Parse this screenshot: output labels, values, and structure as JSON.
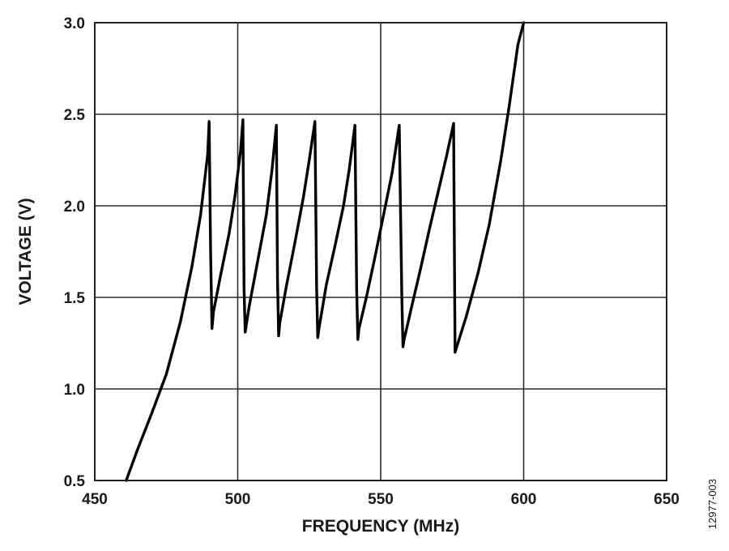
{
  "chart_data": {
    "type": "line",
    "title": "",
    "xlabel": "FREQUENCY (MHz)",
    "ylabel": "VOLTAGE (V)",
    "xlim": [
      450,
      650
    ],
    "ylim": [
      0.5,
      3.0
    ],
    "x_ticks": [
      450,
      500,
      550,
      600,
      650
    ],
    "x_tick_labels": [
      "450",
      "500",
      "550",
      "600",
      "650"
    ],
    "y_ticks": [
      0.5,
      1.0,
      1.5,
      2.0,
      2.5,
      3.0
    ],
    "y_tick_labels": [
      "0.5",
      "1.0",
      "1.5",
      "2.0",
      "2.5",
      "3.0"
    ],
    "grid": true,
    "line_color": "#000000",
    "series": [
      {
        "x": [
          461,
          465,
          470,
          475,
          480,
          484,
          487,
          489.5,
          490,
          490.5,
          491,
          491.5,
          494,
          497,
          499,
          501,
          501.8,
          502.2,
          502.6,
          504,
          507,
          510,
          512,
          513.5,
          513.9,
          514.3,
          514.7,
          517,
          520,
          523,
          525,
          527,
          527.6,
          528,
          528.4,
          531,
          534,
          537,
          539,
          541,
          541.6,
          542,
          542.4,
          545,
          548,
          551,
          554,
          556.5,
          557.4,
          557.8,
          558.2,
          561,
          564,
          567,
          570,
          573,
          575.5,
          576,
          576.4,
          580,
          584,
          588,
          592,
          595,
          598,
          600
        ],
        "y": [
          0.5,
          0.67,
          0.87,
          1.08,
          1.37,
          1.67,
          1.95,
          2.28,
          2.46,
          1.75,
          1.33,
          1.42,
          1.62,
          1.85,
          2.05,
          2.3,
          2.47,
          1.55,
          1.31,
          1.45,
          1.7,
          1.95,
          2.2,
          2.44,
          1.6,
          1.29,
          1.36,
          1.56,
          1.8,
          2.05,
          2.25,
          2.46,
          1.55,
          1.28,
          1.33,
          1.57,
          1.78,
          2.0,
          2.2,
          2.44,
          1.55,
          1.27,
          1.33,
          1.5,
          1.72,
          1.95,
          2.18,
          2.44,
          1.5,
          1.23,
          1.27,
          1.46,
          1.66,
          1.87,
          2.07,
          2.27,
          2.45,
          1.2,
          1.22,
          1.4,
          1.63,
          1.9,
          2.25,
          2.55,
          2.88,
          3.0
        ]
      }
    ]
  },
  "figure_id": "12977-003"
}
